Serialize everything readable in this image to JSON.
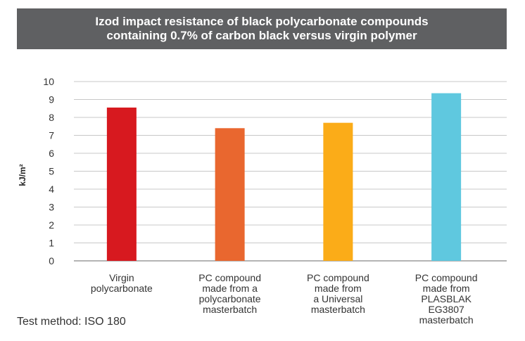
{
  "chart_data": {
    "type": "bar",
    "title_lines": [
      "Izod impact resistance of black polycarbonate compounds",
      "containing 0.7% of carbon black versus virgin polymer"
    ],
    "ylabel": "kJ/m²",
    "xlabel": "",
    "ylim": [
      0,
      10
    ],
    "yticks": [
      "0",
      "1",
      "2",
      "3",
      "4",
      "5",
      "6",
      "7",
      "8",
      "9",
      "10"
    ],
    "grid": true,
    "categories": [
      [
        "Virgin",
        "polycarbonate"
      ],
      [
        "PC compound",
        "made from a",
        "polycarbonate",
        "masterbatch"
      ],
      [
        "PC compound",
        "made from",
        "a Universal",
        "masterbatch"
      ],
      [
        "PC compound",
        "made from",
        "PLASBLAK",
        "EG3807",
        "masterbatch"
      ]
    ],
    "values": [
      8.55,
      7.4,
      7.7,
      9.35
    ],
    "colors": [
      "#d7191f",
      "#e9672f",
      "#fbac18",
      "#5fc8df"
    ]
  },
  "footnote": "Test method: ISO 180"
}
